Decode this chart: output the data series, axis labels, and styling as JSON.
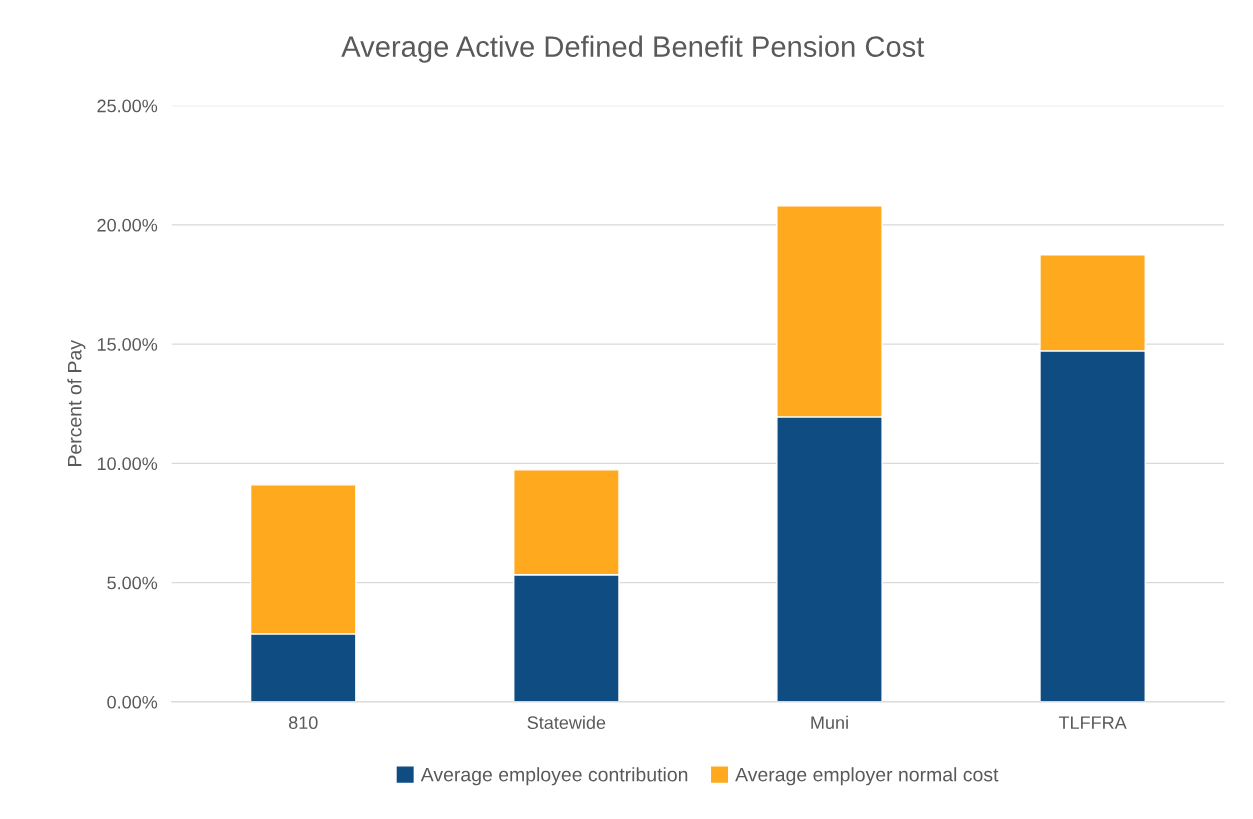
{
  "chart_data": {
    "type": "bar",
    "title": "Average Active Defined Benefit Pension Cost",
    "ylabel": "Percent of Pay",
    "categories": [
      "810",
      "Statewide",
      "Muni",
      "TLFFRA"
    ],
    "series": [
      {
        "name": "Average employee contribution",
        "color": "#0f4c81",
        "values": [
          2.85,
          5.33,
          11.95,
          14.72
        ]
      },
      {
        "name": "Average employer normal cost",
        "color": "#ffa91f",
        "values": [
          6.25,
          4.4,
          8.85,
          4.03
        ]
      }
    ],
    "stacked": true,
    "ylim": [
      0,
      25
    ],
    "yticks": [
      {
        "value": 0,
        "label": "0.00%"
      },
      {
        "value": 5,
        "label": "5.00%"
      },
      {
        "value": 10,
        "label": "10.00%"
      },
      {
        "value": 15,
        "label": "15.00%"
      },
      {
        "value": 20,
        "label": "20.00%"
      },
      {
        "value": 25,
        "label": "25.00%"
      }
    ],
    "grid": "y",
    "legend": "bottom"
  }
}
